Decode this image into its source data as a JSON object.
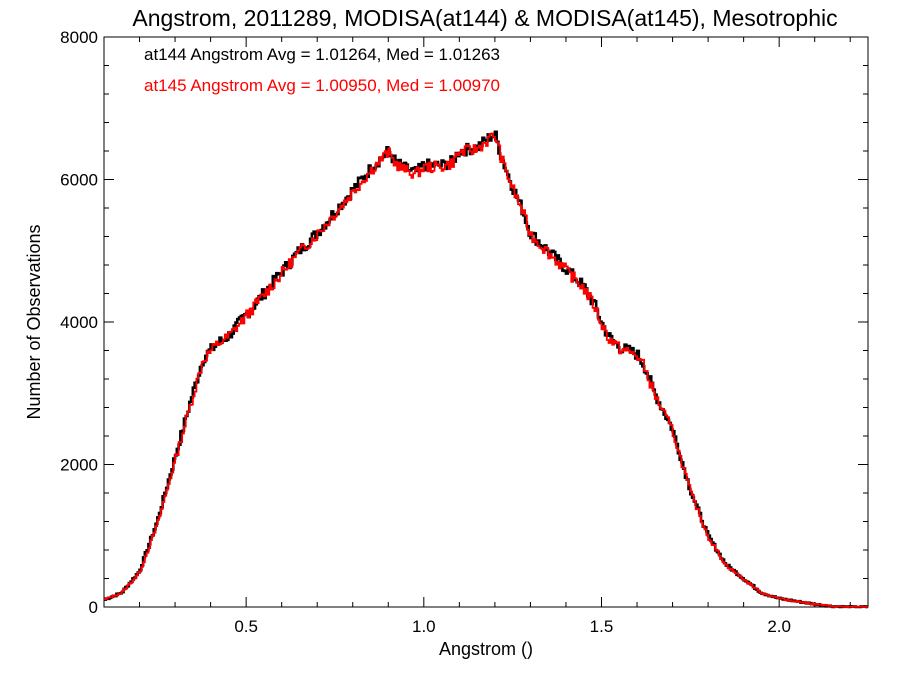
{
  "chart_data": {
    "type": "line",
    "title": "Angstrom, 2011289, MODISA(at144) & MODISA(at145), Mesotrophic",
    "xlabel": "Angstrom ()",
    "ylabel": "Number of Observations",
    "xlim": [
      0.1,
      2.25
    ],
    "ylim": [
      0,
      8000
    ],
    "x_ticks": [
      0.5,
      1.0,
      1.5,
      2.0
    ],
    "x_tick_labels": [
      "0.5",
      "1.0",
      "1.5",
      "2.0"
    ],
    "y_ticks": [
      0,
      2000,
      4000,
      6000,
      8000
    ],
    "y_tick_labels": [
      "0",
      "2000",
      "4000",
      "6000",
      "8000"
    ],
    "grid": false,
    "legend_position": "top-left",
    "series": [
      {
        "name": "at144 Angstrom Avg = 1.01264, Med = 1.01263",
        "color": "#000000",
        "points": [
          [
            0.1,
            100
          ],
          [
            0.15,
            200
          ],
          [
            0.2,
            500
          ],
          [
            0.25,
            1200
          ],
          [
            0.3,
            2100
          ],
          [
            0.35,
            3000
          ],
          [
            0.38,
            3500
          ],
          [
            0.42,
            3700
          ],
          [
            0.45,
            3800
          ],
          [
            0.5,
            4100
          ],
          [
            0.55,
            4400
          ],
          [
            0.6,
            4700
          ],
          [
            0.65,
            5000
          ],
          [
            0.7,
            5250
          ],
          [
            0.75,
            5550
          ],
          [
            0.8,
            5850
          ],
          [
            0.85,
            6150
          ],
          [
            0.88,
            6300
          ],
          [
            0.9,
            6400
          ],
          [
            0.92,
            6250
          ],
          [
            0.95,
            6150
          ],
          [
            0.98,
            6100
          ],
          [
            1.0,
            6200
          ],
          [
            1.05,
            6200
          ],
          [
            1.08,
            6250
          ],
          [
            1.1,
            6400
          ],
          [
            1.15,
            6450
          ],
          [
            1.2,
            6650
          ],
          [
            1.22,
            6300
          ],
          [
            1.25,
            5900
          ],
          [
            1.28,
            5550
          ],
          [
            1.3,
            5250
          ],
          [
            1.35,
            5000
          ],
          [
            1.4,
            4750
          ],
          [
            1.45,
            4500
          ],
          [
            1.48,
            4250
          ],
          [
            1.5,
            4000
          ],
          [
            1.52,
            3800
          ],
          [
            1.55,
            3650
          ],
          [
            1.6,
            3550
          ],
          [
            1.62,
            3400
          ],
          [
            1.65,
            3000
          ],
          [
            1.7,
            2500
          ],
          [
            1.75,
            1650
          ],
          [
            1.8,
            1000
          ],
          [
            1.85,
            600
          ],
          [
            1.9,
            400
          ],
          [
            1.95,
            200
          ],
          [
            2.0,
            120
          ],
          [
            2.05,
            80
          ],
          [
            2.1,
            40
          ],
          [
            2.15,
            10
          ],
          [
            2.2,
            0
          ],
          [
            2.25,
            0
          ]
        ]
      },
      {
        "name": "at145 Angstrom Avg = 1.00950, Med = 1.00970",
        "color": "#ff0000",
        "points": [
          [
            0.1,
            100
          ],
          [
            0.15,
            200
          ],
          [
            0.2,
            480
          ],
          [
            0.25,
            1150
          ],
          [
            0.3,
            2050
          ],
          [
            0.35,
            2950
          ],
          [
            0.38,
            3480
          ],
          [
            0.42,
            3690
          ],
          [
            0.45,
            3790
          ],
          [
            0.5,
            4080
          ],
          [
            0.55,
            4380
          ],
          [
            0.6,
            4680
          ],
          [
            0.65,
            4980
          ],
          [
            0.7,
            5230
          ],
          [
            0.75,
            5520
          ],
          [
            0.8,
            5820
          ],
          [
            0.85,
            6120
          ],
          [
            0.88,
            6280
          ],
          [
            0.9,
            6380
          ],
          [
            0.92,
            6230
          ],
          [
            0.95,
            6120
          ],
          [
            0.98,
            6080
          ],
          [
            1.0,
            6170
          ],
          [
            1.05,
            6180
          ],
          [
            1.08,
            6230
          ],
          [
            1.1,
            6380
          ],
          [
            1.15,
            6430
          ],
          [
            1.2,
            6630
          ],
          [
            1.22,
            6280
          ],
          [
            1.25,
            5880
          ],
          [
            1.28,
            5530
          ],
          [
            1.3,
            5230
          ],
          [
            1.35,
            4980
          ],
          [
            1.4,
            4730
          ],
          [
            1.45,
            4480
          ],
          [
            1.48,
            4230
          ],
          [
            1.5,
            3980
          ],
          [
            1.52,
            3780
          ],
          [
            1.55,
            3630
          ],
          [
            1.6,
            3530
          ],
          [
            1.62,
            3380
          ],
          [
            1.65,
            2980
          ],
          [
            1.7,
            2480
          ],
          [
            1.75,
            1630
          ],
          [
            1.8,
            990
          ],
          [
            1.85,
            590
          ],
          [
            1.9,
            390
          ],
          [
            1.95,
            200
          ],
          [
            2.0,
            120
          ],
          [
            2.05,
            80
          ],
          [
            2.1,
            40
          ],
          [
            2.15,
            10
          ],
          [
            2.2,
            0
          ],
          [
            2.25,
            0
          ]
        ]
      }
    ]
  }
}
